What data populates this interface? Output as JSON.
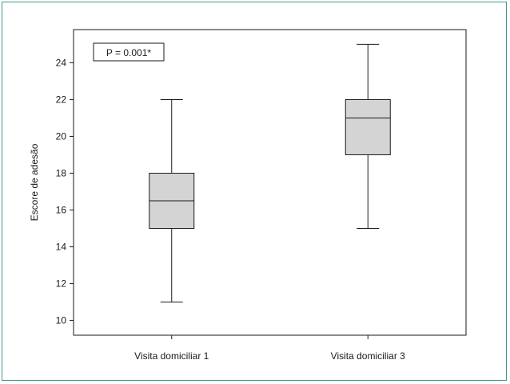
{
  "chart_data": {
    "type": "box",
    "ylabel": "Escore de adesão",
    "xlabel": "",
    "ylim": [
      9.2,
      25.8
    ],
    "yticks": [
      10,
      12,
      14,
      16,
      18,
      20,
      22,
      24
    ],
    "annotation": "P = 0.001*",
    "categories": [
      "Visita domiciliar 1",
      "Visita domiciliar 3"
    ],
    "boxes": [
      {
        "category": "Visita domiciliar 1",
        "min": 11,
        "q1": 15,
        "median": 16.5,
        "q3": 18,
        "max": 22
      },
      {
        "category": "Visita domiciliar 3",
        "min": 15,
        "q1": 19,
        "median": 21,
        "q3": 22,
        "max": 25
      }
    ],
    "box_fill": "#d4d4d4",
    "line_color": "#1a1a1a",
    "frame_color": "#3d9a8b"
  }
}
